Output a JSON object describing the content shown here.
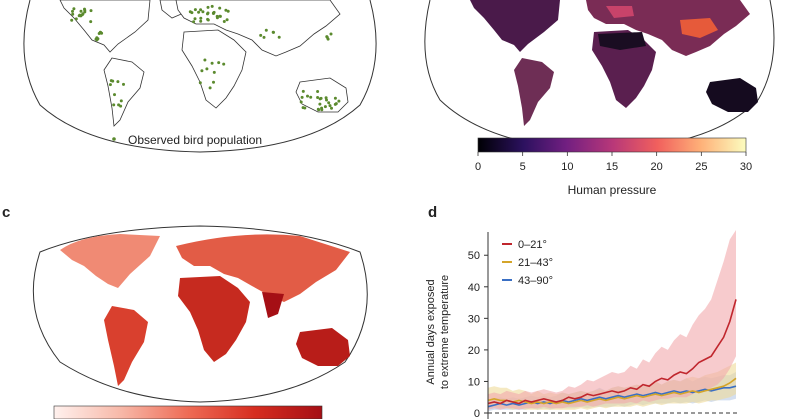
{
  "panels": {
    "c_letter": "c",
    "d_letter": "d"
  },
  "panel_a": {
    "legend_label": "Observed bird population",
    "point_color": "#5b8a2e"
  },
  "panel_b": {
    "colorbar_label": "Human pressure",
    "colorbar_ticks": [
      "0",
      "5",
      "10",
      "15",
      "20",
      "25",
      "30"
    ],
    "colormap": [
      "#000004",
      "#2c115f",
      "#721f81",
      "#b73779",
      "#f1605d",
      "#feb078",
      "#fcfdbf"
    ]
  },
  "panel_c": {
    "colormap": [
      "#fff1ee",
      "#f7b8a8",
      "#ee6b55",
      "#d62d20",
      "#a50f15"
    ]
  },
  "chart_data": {
    "type": "line",
    "title": "",
    "ylabel": "Annual days exposed to extreme temperature",
    "ylabel_lines": [
      "Annual days exposed",
      "to extreme temperature"
    ],
    "xlabel": "",
    "ylim": [
      0,
      58
    ],
    "yticks": [
      "0",
      "10",
      "20",
      "30",
      "40",
      "50"
    ],
    "grid": false,
    "legend_position": "top-left",
    "x": [
      0,
      1,
      2,
      3,
      4,
      5,
      6,
      7,
      8,
      9,
      10,
      11,
      12,
      13,
      14,
      15,
      16,
      17,
      18,
      19,
      20,
      21,
      22,
      23,
      24,
      25,
      26,
      27,
      28,
      29,
      30,
      31,
      32,
      33,
      34,
      35,
      36,
      37,
      38,
      39,
      40
    ],
    "series": [
      {
        "name": "0–21°",
        "color": "#c0262d",
        "band_color": "#f2a9ab",
        "values": [
          3,
          3.5,
          3,
          4,
          3.5,
          3,
          4,
          3.5,
          4,
          4.5,
          4,
          3.5,
          4,
          5,
          4.5,
          5,
          6,
          5.5,
          6,
          6.5,
          7,
          6.5,
          7,
          8,
          7.5,
          9,
          8.5,
          10,
          11,
          10.5,
          12,
          13,
          12.5,
          14,
          16,
          17,
          18,
          21,
          24,
          29,
          36
        ],
        "lower": [
          1,
          1.5,
          1,
          1.5,
          1.5,
          1,
          1.5,
          1.5,
          1.5,
          2,
          1.5,
          1.5,
          1.5,
          2,
          2,
          2,
          2.5,
          2,
          2.5,
          3,
          3,
          3,
          3,
          3.5,
          3,
          4,
          3.5,
          4,
          4.5,
          4.5,
          5,
          5,
          5,
          6,
          7,
          7,
          8,
          9,
          11,
          14,
          18
        ],
        "upper": [
          6,
          6.5,
          6,
          7,
          6.5,
          6,
          7,
          6.5,
          7,
          7.5,
          7,
          6.5,
          7,
          8.5,
          8,
          9,
          10.5,
          10,
          11,
          12,
          13,
          12.5,
          13,
          15,
          14,
          17,
          16,
          19,
          21,
          20,
          23,
          25,
          24,
          28,
          31,
          33,
          36,
          42,
          48,
          55,
          58
        ]
      },
      {
        "name": "21–43°",
        "color": "#d4a52a",
        "band_color": "#efdb9a",
        "values": [
          4,
          4.5,
          4,
          4,
          3.5,
          4,
          3.5,
          3,
          3.5,
          3,
          3.5,
          3,
          3.5,
          3,
          3.5,
          4,
          3.5,
          4,
          4.5,
          4,
          4.5,
          5,
          4.5,
          5,
          5.5,
          5,
          5.5,
          6,
          5.5,
          6,
          6.5,
          6,
          6.5,
          7,
          6.5,
          7,
          7.5,
          8,
          8.5,
          9.5,
          11
        ],
        "lower": [
          1.5,
          2,
          1.5,
          1.5,
          1,
          1.5,
          1,
          1,
          1,
          1,
          1,
          1,
          1,
          1,
          1,
          1.5,
          1,
          1.5,
          2,
          1.5,
          2,
          2,
          2,
          2,
          2.5,
          2,
          2.5,
          3,
          2.5,
          3,
          3,
          3,
          3,
          3.5,
          3,
          3.5,
          4,
          4,
          4.5,
          5,
          6
        ],
        "upper": [
          8,
          8.5,
          8,
          8,
          7,
          7.5,
          7,
          6,
          7,
          6,
          6.5,
          6,
          6.5,
          6,
          6.5,
          7,
          6.5,
          7,
          7.5,
          7,
          8,
          8.5,
          8,
          8.5,
          9,
          8.5,
          9,
          10,
          9,
          10,
          10.5,
          10,
          11,
          11.5,
          11,
          12,
          12.5,
          13,
          14,
          15,
          16
        ]
      },
      {
        "name": "43–90°",
        "color": "#3a6fc4",
        "band_color": "#b7c9e6",
        "values": [
          2,
          2.5,
          3,
          2.5,
          3,
          2.5,
          3,
          3.5,
          3,
          3.5,
          3,
          3.5,
          4,
          3.5,
          4,
          4.5,
          4,
          4.5,
          5,
          4.5,
          5,
          5.5,
          5,
          5.5,
          6,
          5.5,
          6,
          6.5,
          6,
          6.5,
          7,
          6.5,
          7,
          6.5,
          7,
          7.5,
          7,
          7.5,
          8,
          8,
          8.5
        ],
        "lower": [
          0.5,
          1,
          1,
          1,
          1,
          1,
          1,
          1.5,
          1,
          1.5,
          1,
          1.5,
          1.5,
          1.5,
          1.5,
          2,
          1.5,
          2,
          2,
          2,
          2,
          2.5,
          2,
          2.5,
          3,
          2.5,
          3,
          3,
          3,
          3,
          3.5,
          3,
          3.5,
          3,
          3.5,
          4,
          3.5,
          4,
          4,
          4,
          4.5
        ],
        "upper": [
          4,
          4.5,
          5,
          4.5,
          5,
          4.5,
          5,
          5.5,
          5,
          5.5,
          5,
          5.5,
          6.5,
          6,
          6.5,
          7,
          6.5,
          7,
          8,
          7,
          8,
          8.5,
          8,
          8.5,
          9,
          8.5,
          9,
          10,
          9,
          10,
          10.5,
          10,
          11,
          10,
          11,
          11.5,
          11,
          11.5,
          12,
          12,
          13
        ]
      }
    ]
  }
}
